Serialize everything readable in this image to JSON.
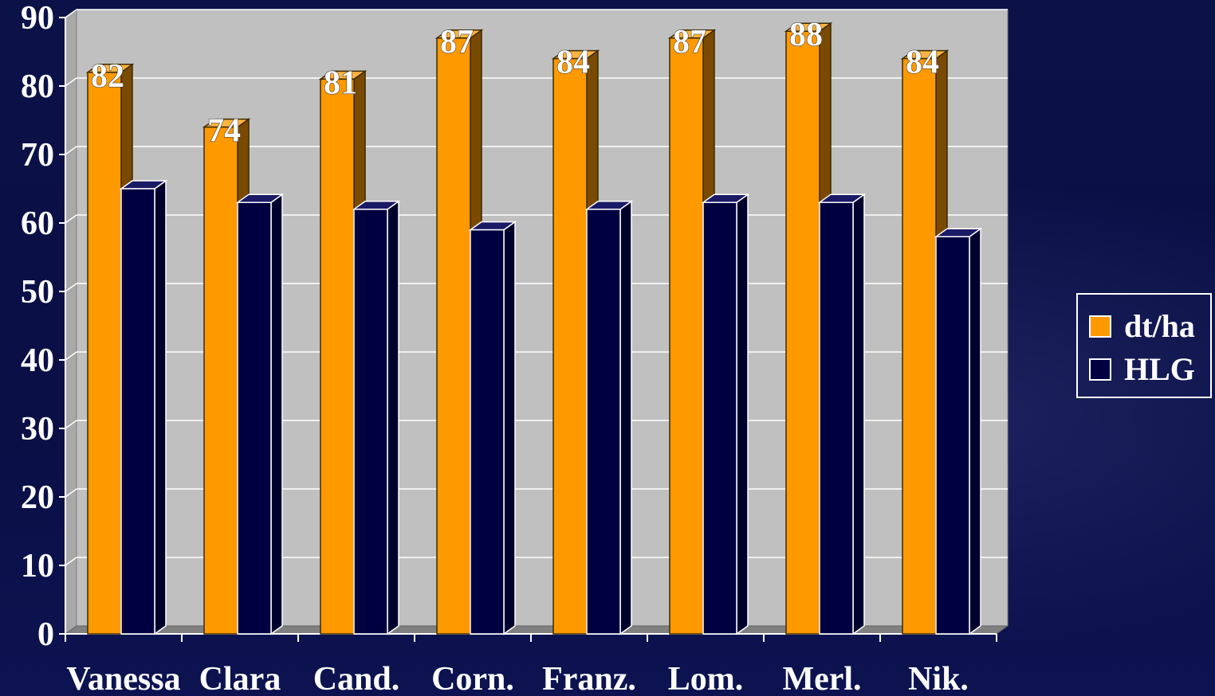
{
  "chart_data": {
    "type": "bar",
    "categories": [
      "Vanessa",
      "Clara",
      "Cand.",
      "Corn.",
      "Franz.",
      "Lom.",
      "Merl.",
      "Nik."
    ],
    "series": [
      {
        "name": "dt/ha",
        "values": [
          82,
          74,
          81,
          87,
          84,
          87,
          88,
          84
        ],
        "color": "#ff9900",
        "data_labels": [
          "82",
          "74",
          "81",
          "87",
          "84",
          "87",
          "88",
          "84"
        ]
      },
      {
        "name": "HLG",
        "values": [
          65,
          63,
          62,
          59,
          62,
          63,
          63,
          58
        ],
        "color": "#000040"
      }
    ],
    "yticks": [
      "0",
      "10",
      "20",
      "30",
      "40",
      "50",
      "60",
      "70",
      "80",
      "90"
    ],
    "ylim": [
      0,
      90
    ],
    "grid": true,
    "legend_position": "right",
    "colors": {
      "plot_background": "#c0c0c0",
      "page_background": "#0a0f45",
      "text": "#ffffff"
    }
  }
}
